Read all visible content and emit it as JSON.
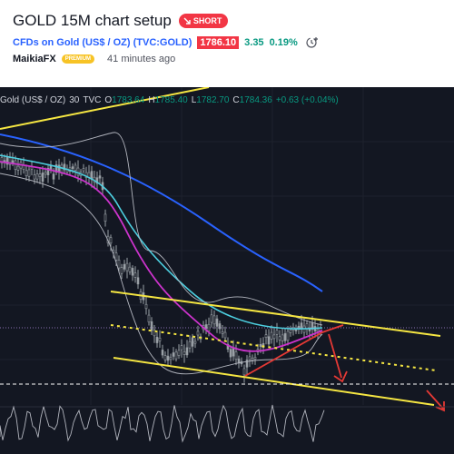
{
  "idea": {
    "title": "GOLD 15M chart setup",
    "badge": "SHORT",
    "symbol_text": "CFDs on Gold (US$ / OZ) (TVC:GOLD)",
    "price": "1786.10",
    "change": "3.35",
    "change_pct": "0.19%",
    "author": "MaikiaFX",
    "author_badge": "PREMIUM",
    "published": "41 minutes ago"
  },
  "chart": {
    "symbol": "Gold (US$ / OZ)",
    "interval": "30",
    "source": "TVC",
    "open_label": "O",
    "open": "1783.64",
    "high_label": "H",
    "high": "1785.40",
    "low_label": "L",
    "low": "1782.70",
    "close_label": "C",
    "close": "1784.36",
    "change": "+0.63 (+0.04%)",
    "colors": {
      "background": "#131722",
      "up_candle": "#9aa0a6",
      "down_candle": "#131722",
      "ma_fast": "#cc33cc",
      "ma_mid": "#4dd0e1",
      "ma_slow": "#2962ff",
      "channel": "#f5e642",
      "annotation": "#e53935"
    },
    "icons": [
      "arrow-down-right-icon",
      "clock-plus-icon"
    ]
  }
}
